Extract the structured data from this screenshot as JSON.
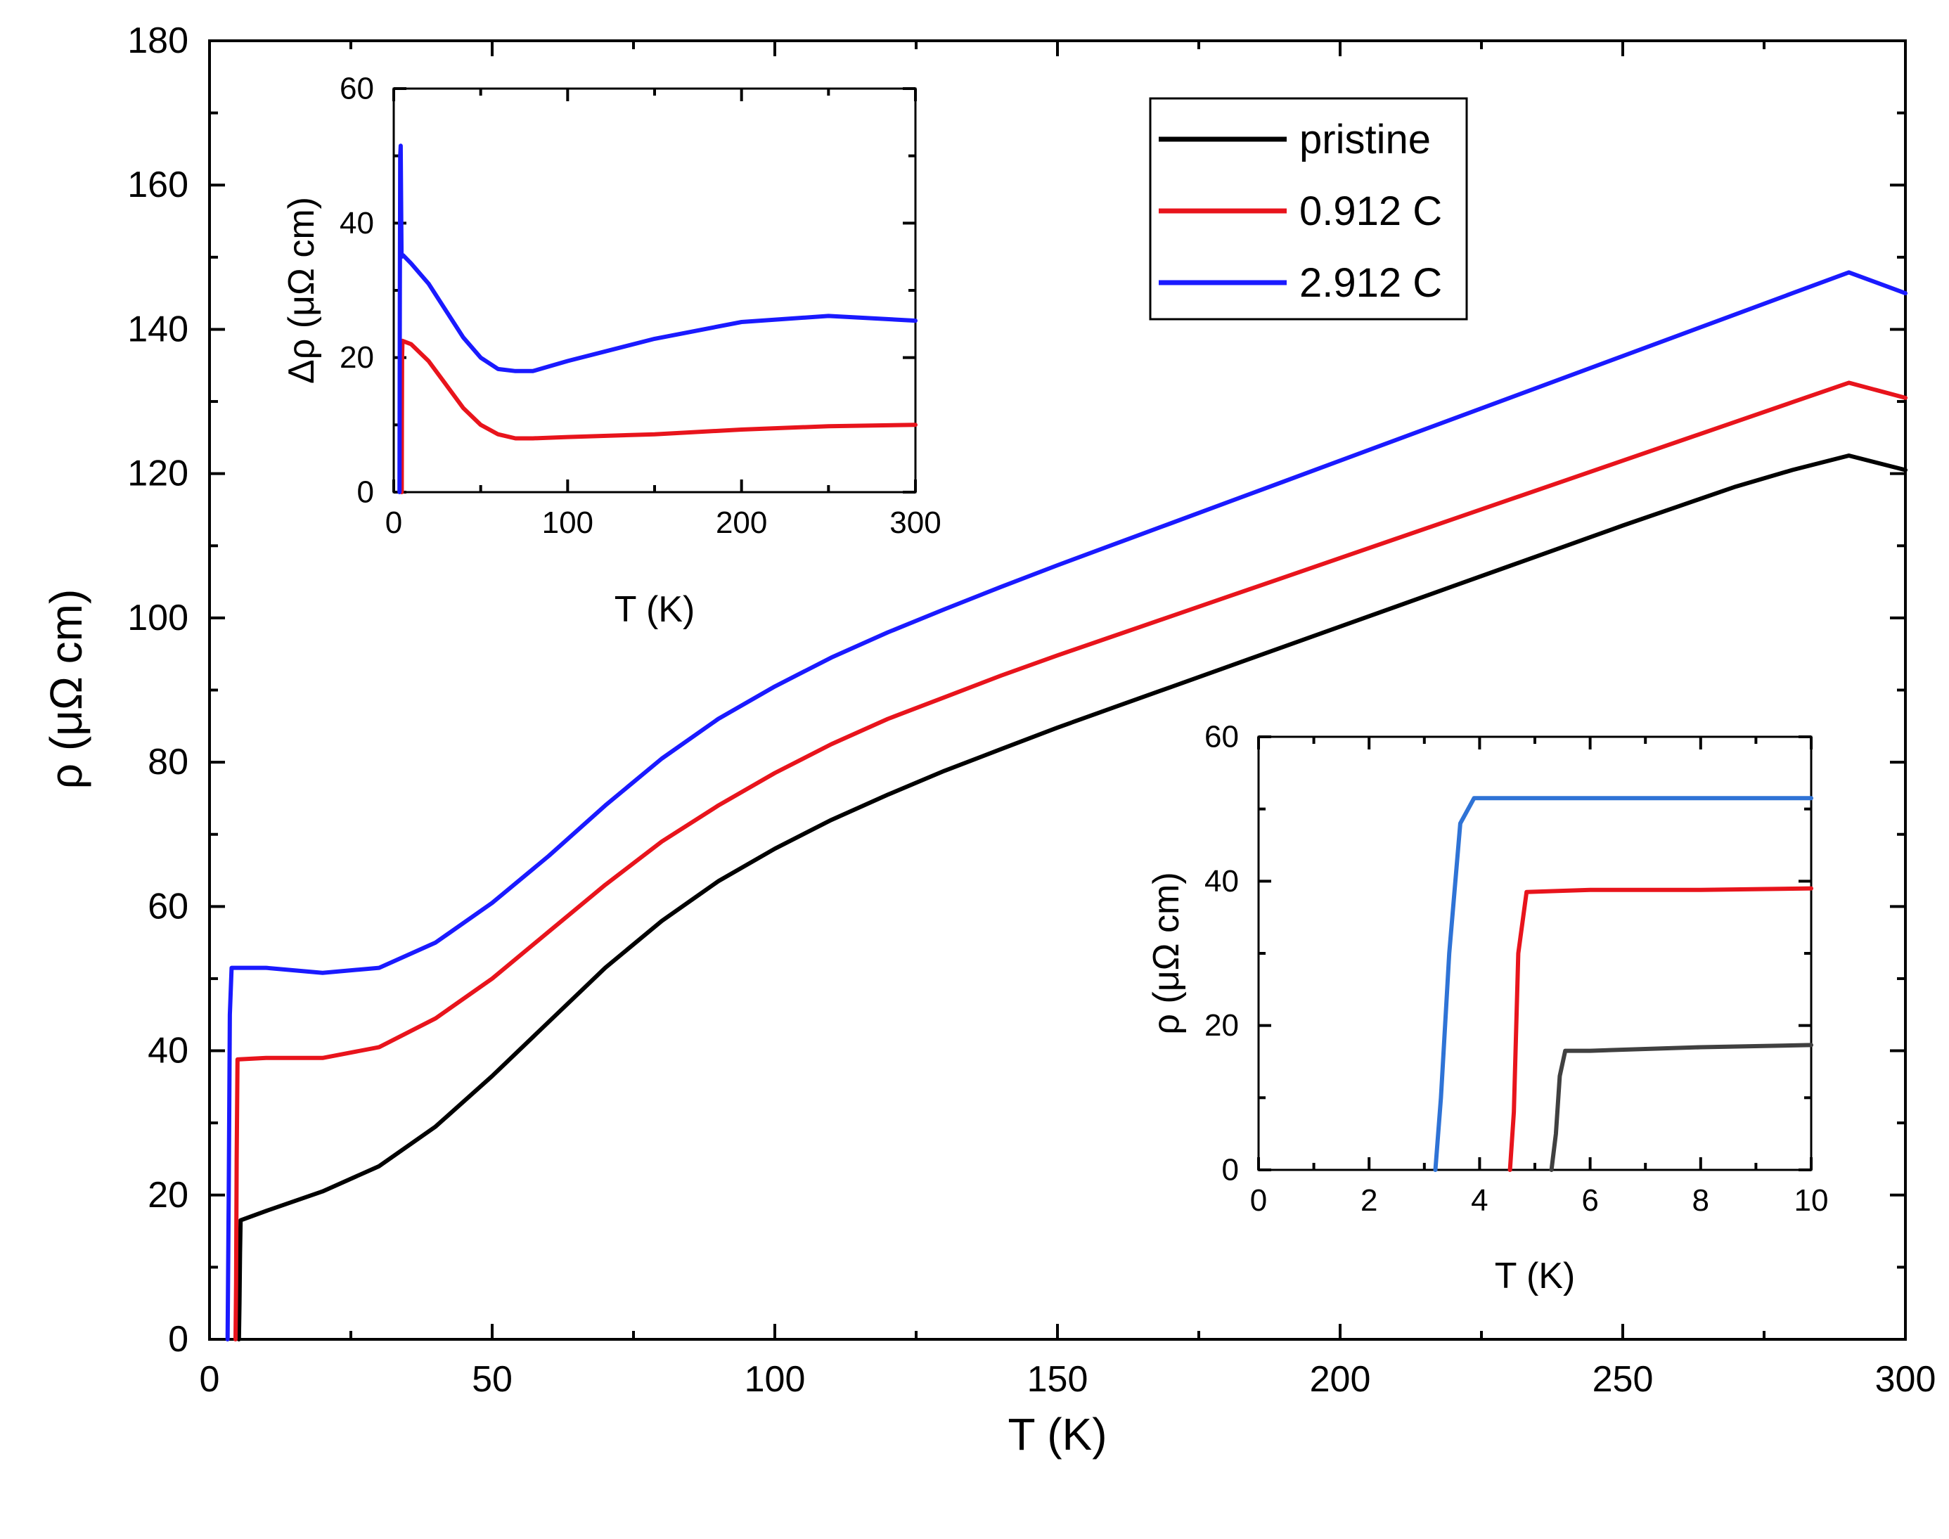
{
  "chart_data": [
    {
      "id": "main",
      "type": "line",
      "xlabel": "T (K)",
      "ylabel": "ρ (μΩ cm)",
      "xlim": [
        0,
        300
      ],
      "ylim": [
        0,
        180
      ],
      "xticks": [
        0,
        50,
        100,
        150,
        200,
        250,
        300
      ],
      "yticks": [
        0,
        20,
        40,
        60,
        80,
        100,
        120,
        140,
        160,
        180
      ],
      "grid": false,
      "legend_position": "top-right",
      "series": [
        {
          "name": "pristine",
          "color": "#000000",
          "points": [
            [
              5.2,
              0
            ],
            [
              5.3,
              5
            ],
            [
              5.4,
              12
            ],
            [
              5.5,
              16.5
            ],
            [
              10,
              17.8
            ],
            [
              20,
              20.5
            ],
            [
              30,
              24
            ],
            [
              40,
              29.5
            ],
            [
              50,
              36.5
            ],
            [
              60,
              44
            ],
            [
              70,
              51.5
            ],
            [
              80,
              58
            ],
            [
              90,
              63.5
            ],
            [
              100,
              68
            ],
            [
              110,
              72
            ],
            [
              120,
              75.5
            ],
            [
              130,
              78.8
            ],
            [
              140,
              81.8
            ],
            [
              150,
              84.8
            ],
            [
              160,
              87.6
            ],
            [
              170,
              90.4
            ],
            [
              180,
              93.2
            ],
            [
              190,
              96
            ],
            [
              200,
              98.8
            ],
            [
              210,
              101.6
            ],
            [
              220,
              104.4
            ],
            [
              230,
              107.2
            ],
            [
              240,
              110
            ],
            [
              250,
              112.8
            ],
            [
              260,
              115.5
            ],
            [
              270,
              118.2
            ],
            [
              280,
              120.5
            ],
            [
              290,
              122.5
            ],
            [
              300,
              120.5
            ]
          ]
        },
        {
          "name": "0.912 C",
          "color": "#e8141c",
          "points": [
            [
              4.6,
              0
            ],
            [
              4.7,
              8
            ],
            [
              4.8,
              25
            ],
            [
              4.95,
              38.8
            ],
            [
              10,
              39
            ],
            [
              20,
              39
            ],
            [
              30,
              40.5
            ],
            [
              40,
              44.5
            ],
            [
              50,
              50
            ],
            [
              60,
              56.5
            ],
            [
              70,
              63
            ],
            [
              80,
              69
            ],
            [
              90,
              74
            ],
            [
              100,
              78.5
            ],
            [
              110,
              82.5
            ],
            [
              120,
              86
            ],
            [
              130,
              89
            ],
            [
              140,
              92
            ],
            [
              150,
              94.8
            ],
            [
              160,
              97.5
            ],
            [
              170,
              100.2
            ],
            [
              180,
              102.9
            ],
            [
              190,
              105.6
            ],
            [
              200,
              108.3
            ],
            [
              210,
              111
            ],
            [
              220,
              113.7
            ],
            [
              230,
              116.4
            ],
            [
              240,
              119.1
            ],
            [
              250,
              121.8
            ],
            [
              260,
              124.5
            ],
            [
              270,
              127.2
            ],
            [
              280,
              129.9
            ],
            [
              290,
              132.6
            ],
            [
              300,
              130.5
            ]
          ]
        },
        {
          "name": "2.912 C",
          "color": "#1a1aff",
          "points": [
            [
              3.2,
              0
            ],
            [
              3.4,
              20
            ],
            [
              3.6,
              45
            ],
            [
              3.9,
              51.5
            ],
            [
              10,
              51.5
            ],
            [
              20,
              50.8
            ],
            [
              30,
              51.5
            ],
            [
              40,
              55
            ],
            [
              50,
              60.5
            ],
            [
              60,
              67
            ],
            [
              70,
              74
            ],
            [
              80,
              80.5
            ],
            [
              90,
              86
            ],
            [
              100,
              90.5
            ],
            [
              110,
              94.5
            ],
            [
              120,
              98
            ],
            [
              130,
              101.2
            ],
            [
              140,
              104.3
            ],
            [
              150,
              107.3
            ],
            [
              160,
              110.2
            ],
            [
              170,
              113.1
            ],
            [
              180,
              116
            ],
            [
              190,
              118.9
            ],
            [
              200,
              121.8
            ],
            [
              210,
              124.7
            ],
            [
              220,
              127.6
            ],
            [
              230,
              130.5
            ],
            [
              240,
              133.4
            ],
            [
              250,
              136.3
            ],
            [
              260,
              139.2
            ],
            [
              270,
              142.1
            ],
            [
              280,
              145
            ],
            [
              290,
              147.9
            ],
            [
              300,
              145
            ]
          ]
        }
      ]
    },
    {
      "id": "inset-top",
      "type": "line",
      "xlabel": "T (K)",
      "ylabel": "Δρ (μΩ cm)",
      "xlim": [
        0,
        300
      ],
      "ylim": [
        0,
        60
      ],
      "xticks": [
        0,
        100,
        200,
        300
      ],
      "yticks": [
        0,
        20,
        40,
        60
      ],
      "grid": false,
      "series": [
        {
          "color": "#e8141c",
          "points": [
            [
              4.6,
              0
            ],
            [
              4.7,
              10
            ],
            [
              4.8,
              20
            ],
            [
              5,
              22.5
            ],
            [
              10,
              22
            ],
            [
              20,
              19.5
            ],
            [
              30,
              16
            ],
            [
              40,
              12.5
            ],
            [
              50,
              10
            ],
            [
              60,
              8.6
            ],
            [
              70,
              8
            ],
            [
              80,
              8
            ],
            [
              100,
              8.2
            ],
            [
              150,
              8.6
            ],
            [
              200,
              9.3
            ],
            [
              250,
              9.8
            ],
            [
              300,
              10
            ]
          ]
        },
        {
          "color": "#1a1aff",
          "points": [
            [
              3.3,
              0
            ],
            [
              3.5,
              30
            ],
            [
              3.7,
              50
            ],
            [
              4,
              51.5
            ],
            [
              4.5,
              35
            ],
            [
              5.5,
              35.2
            ],
            [
              10,
              34
            ],
            [
              20,
              31
            ],
            [
              30,
              27
            ],
            [
              40,
              23
            ],
            [
              50,
              20
            ],
            [
              60,
              18.3
            ],
            [
              70,
              18
            ],
            [
              80,
              18
            ],
            [
              100,
              19.5
            ],
            [
              150,
              22.8
            ],
            [
              200,
              25.3
            ],
            [
              250,
              26.2
            ],
            [
              300,
              25.5
            ]
          ]
        }
      ]
    },
    {
      "id": "inset-bottom",
      "type": "line",
      "xlabel": "T (K)",
      "ylabel": "ρ (μΩ cm)",
      "xlim": [
        0,
        10
      ],
      "ylim": [
        0,
        60
      ],
      "xticks": [
        0,
        2,
        4,
        6,
        8,
        10
      ],
      "yticks": [
        0,
        20,
        40,
        60
      ],
      "grid": false,
      "series": [
        {
          "color": "#404040",
          "points": [
            [
              5.3,
              0
            ],
            [
              5.38,
              5
            ],
            [
              5.45,
              13
            ],
            [
              5.55,
              16.5
            ],
            [
              6,
              16.5
            ],
            [
              8,
              17
            ],
            [
              10,
              17.3
            ]
          ]
        },
        {
          "color": "#e8141c",
          "points": [
            [
              4.55,
              0
            ],
            [
              4.62,
              8
            ],
            [
              4.7,
              30
            ],
            [
              4.85,
              38.5
            ],
            [
              6,
              38.8
            ],
            [
              8,
              38.8
            ],
            [
              10,
              39
            ]
          ]
        },
        {
          "color": "#2f73d6",
          "points": [
            [
              3.2,
              0
            ],
            [
              3.3,
              10
            ],
            [
              3.45,
              30
            ],
            [
              3.65,
              48
            ],
            [
              3.9,
              51.5
            ],
            [
              6,
              51.5
            ],
            [
              8,
              51.5
            ],
            [
              10,
              51.5
            ]
          ]
        }
      ]
    }
  ]
}
